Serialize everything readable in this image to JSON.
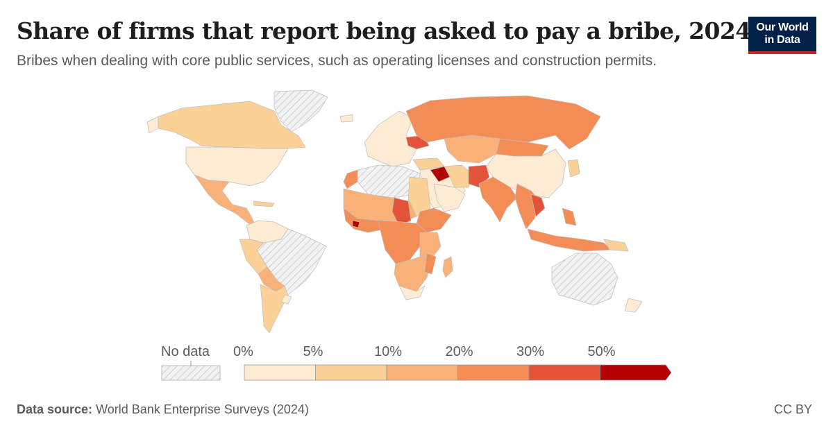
{
  "header": {
    "title": "Share of firms that report being asked to pay a bribe, 2024",
    "subtitle": "Bribes when dealing with core public services, such as operating licenses and construction permits."
  },
  "logo": {
    "line1": "Our World",
    "line2": "in Data",
    "bg_color": "#002147",
    "accent_color": "#ce261e"
  },
  "legend": {
    "no_data_label": "No data",
    "ticks": [
      "0%",
      "5%",
      "10%",
      "20%",
      "30%",
      "50%"
    ],
    "bins": [
      {
        "from": 0,
        "to": 5,
        "color": "#fdebd3"
      },
      {
        "from": 5,
        "to": 10,
        "color": "#fcd198"
      },
      {
        "from": 10,
        "to": 20,
        "color": "#f9b177"
      },
      {
        "from": 20,
        "to": 30,
        "color": "#f48c55"
      },
      {
        "from": 30,
        "to": 50,
        "color": "#e2533a"
      },
      {
        "from": 50,
        "to": null,
        "color": "#b30000"
      }
    ]
  },
  "footer": {
    "source_label": "Data source:",
    "source_text": "World Bank Enterprise Surveys (2024)",
    "license": "CC BY"
  }
}
